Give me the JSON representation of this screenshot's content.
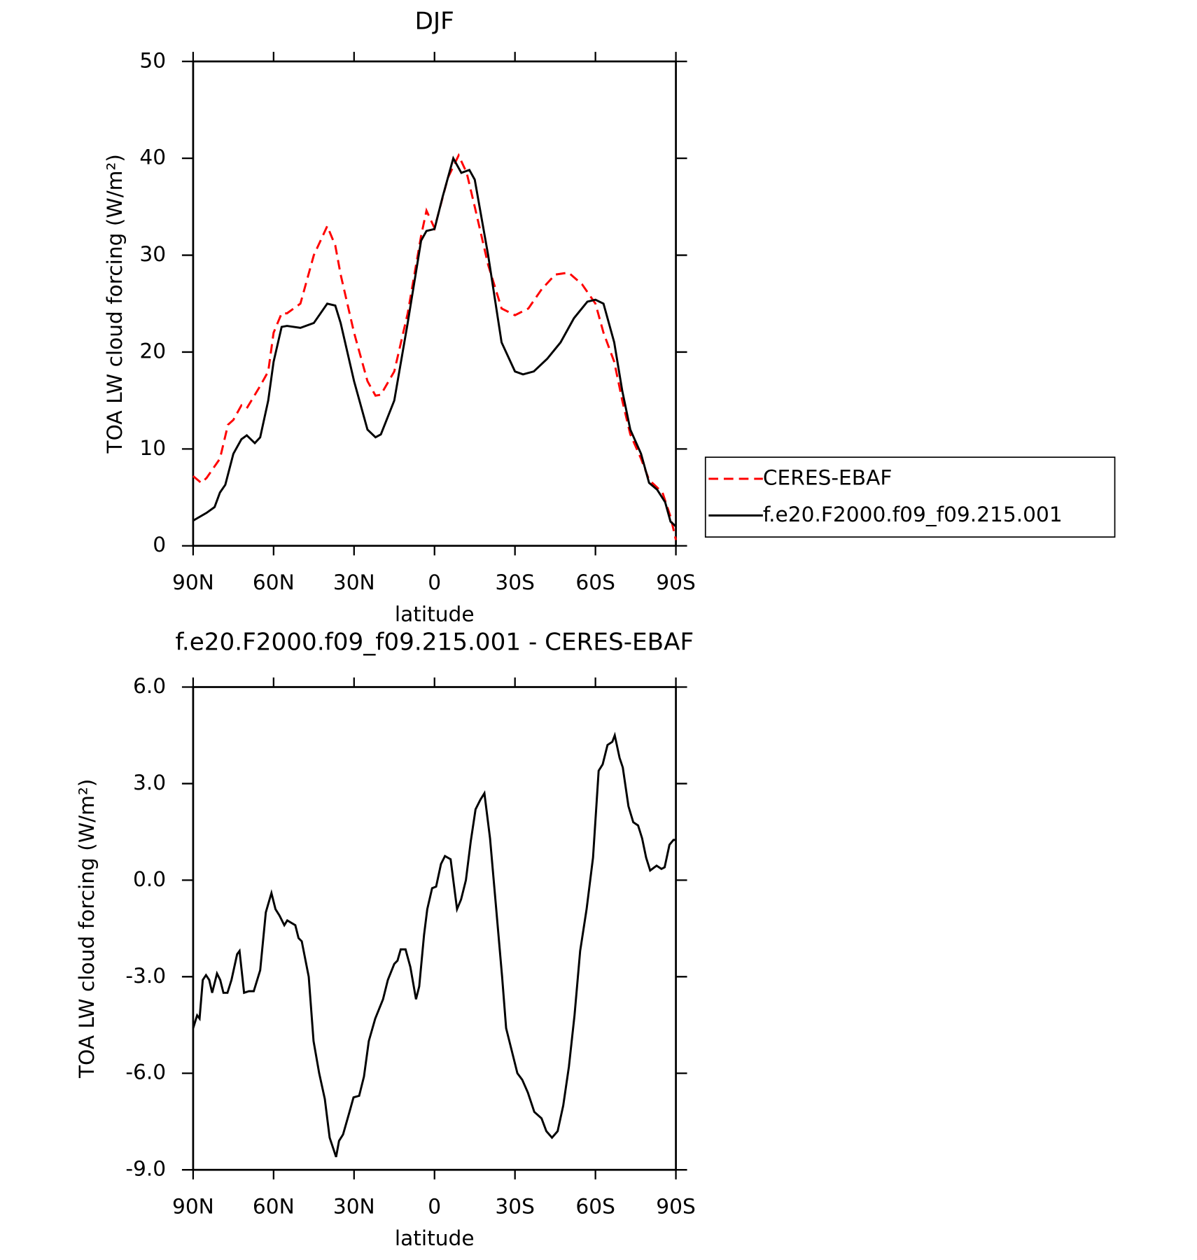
{
  "chart_data": [
    {
      "type": "line",
      "title": "DJF",
      "xlabel": "latitude",
      "ylabel": "TOA LW cloud forcing (W/m²)",
      "xlim": [
        90,
        -90
      ],
      "xticks": [
        {
          "value": 90,
          "label": "90N"
        },
        {
          "value": 60,
          "label": "60N"
        },
        {
          "value": 30,
          "label": "30N"
        },
        0,
        {
          "value": -30,
          "label": "30S"
        },
        {
          "value": -60,
          "label": "60S"
        },
        {
          "value": -90,
          "label": "90S"
        }
      ],
      "ylim": [
        0,
        50
      ],
      "yticks": [
        0,
        10,
        20,
        30,
        40,
        50
      ],
      "legend": "right",
      "series": [
        {
          "name": "CERES-EBAF",
          "color": "#ff0000",
          "dash": "dashed",
          "x": [
            90,
            87,
            85,
            80,
            77,
            75,
            72,
            70,
            65,
            62,
            60,
            57,
            55,
            50,
            45,
            40,
            37,
            35,
            30,
            25,
            22,
            20,
            15,
            10,
            5,
            3,
            0,
            -5,
            -9,
            -12,
            -15,
            -20,
            -25,
            -30,
            -35,
            -40,
            -45,
            -50,
            -55,
            -60,
            -63,
            -67,
            -70,
            -73,
            -77,
            -80,
            -85,
            -88,
            -90
          ],
          "values": [
            7.2,
            6.5,
            7,
            9,
            12.5,
            13,
            14.5,
            14.2,
            16.5,
            18,
            22,
            24,
            24,
            25,
            30,
            33,
            31,
            28,
            22,
            17,
            15.5,
            15.6,
            18,
            24,
            32,
            34.6,
            32.8,
            38,
            40.3,
            38.5,
            35,
            29,
            24.5,
            23.8,
            24.5,
            26.5,
            28,
            28.2,
            27,
            25,
            22,
            19,
            15,
            11.5,
            9,
            6.8,
            5.5,
            3,
            0.6
          ]
        },
        {
          "name": "f.e20.F2000.f09_f09.215.001",
          "color": "#000000",
          "dash": "solid",
          "x": [
            90,
            85,
            82,
            80,
            78,
            75,
            72,
            70,
            67,
            65,
            62,
            60,
            57,
            55,
            50,
            45,
            40,
            37,
            35,
            30,
            25,
            22,
            20,
            15,
            10,
            5,
            3,
            0,
            -3,
            -7,
            -10,
            -13,
            -15,
            -20,
            -25,
            -30,
            -33,
            -37,
            -42,
            -47,
            -52,
            -57,
            -60,
            -63,
            -67,
            -70,
            -73,
            -77,
            -80,
            -83,
            -86,
            -88,
            -90
          ],
          "values": [
            2.6,
            3.4,
            4,
            5.5,
            6.3,
            9.5,
            11,
            11.4,
            10.6,
            11.2,
            15,
            19,
            22.6,
            22.7,
            22.5,
            23,
            25,
            24.8,
            23,
            17,
            12,
            11.2,
            11.5,
            15,
            23,
            31.5,
            32.5,
            32.7,
            36,
            40,
            38.5,
            38.8,
            37.8,
            30,
            21,
            18,
            17.7,
            18,
            19.3,
            21,
            23.5,
            25.2,
            25.4,
            25,
            21,
            16,
            12,
            9.5,
            6.5,
            5.8,
            4.5,
            2.5,
            2
          ]
        }
      ]
    },
    {
      "type": "line",
      "title": "f.e20.F2000.f09_f09.215.001 - CERES-EBAF",
      "xlabel": "latitude",
      "ylabel": "TOA LW cloud forcing (W/m²)",
      "xlim": [
        90,
        -90
      ],
      "xticks": [
        {
          "value": 90,
          "label": "90N"
        },
        {
          "value": 60,
          "label": "60N"
        },
        {
          "value": 30,
          "label": "30N"
        },
        0,
        {
          "value": -30,
          "label": "30S"
        },
        {
          "value": -60,
          "label": "60S"
        },
        {
          "value": -90,
          "label": "90S"
        }
      ],
      "ylim": [
        -9,
        6
      ],
      "yticks": [
        {
          "value": -9,
          "label": "-9.0"
        },
        {
          "value": -6,
          "label": "-6.0"
        },
        {
          "value": -3,
          "label": "-3.0"
        },
        {
          "value": 0,
          "label": "0.0"
        },
        {
          "value": 3,
          "label": "3.0"
        },
        {
          "value": 6,
          "label": "6.0"
        }
      ],
      "color": "#000000",
      "x": [
        90,
        88.5,
        87.6,
        86.4,
        85.2,
        84,
        82.9,
        81.1,
        79.9,
        78.7,
        77.2,
        75.7,
        73.6,
        72.7,
        71,
        69.2,
        67.4,
        65,
        62.9,
        60.8,
        59.3,
        57.8,
        56,
        54.9,
        51.9,
        50.7,
        49.5,
        46.9,
        45.1,
        43,
        40.9,
        39.1,
        36.7,
        35.6,
        34.1,
        31.7,
        30.2,
        28.1,
        26.3,
        24.5,
        22.1,
        19.2,
        17.4,
        15,
        13.8,
        12.6,
        10.8,
        9,
        6.9,
        5.7,
        3.9,
        2.7,
        0.9,
        -0.6,
        -2.4,
        -3.9,
        -6,
        -8.4,
        -9.9,
        -11.7,
        -13.5,
        -15.3,
        -17.1,
        -18.6,
        -20.7,
        -22.8,
        -25.2,
        -26.7,
        -28.8,
        -30.9,
        -32.7,
        -34.8,
        -37.2,
        -39.9,
        -41.7,
        -43.8,
        -45.9,
        -48,
        -50.1,
        -52.2,
        -54.3,
        -56.7,
        -59.1,
        -61.2,
        -62.7,
        -64.5,
        -66.3,
        -67.2,
        -69,
        -70.2,
        -72.3,
        -74.1,
        -75.9,
        -77.4,
        -78.9,
        -80.4,
        -82.8,
        -84.6,
        -85.8,
        -87.6,
        -89.1,
        -90
      ],
      "values": [
        -4.6,
        -4.2,
        -4.3,
        -3.1,
        -2.95,
        -3.1,
        -3.5,
        -2.9,
        -3.1,
        -3.5,
        -3.5,
        -3.1,
        -2.3,
        -2.2,
        -3.5,
        -3.45,
        -3.45,
        -2.8,
        -1.0,
        -0.4,
        -0.9,
        -1.1,
        -1.4,
        -1.25,
        -1.4,
        -1.8,
        -1.9,
        -3.0,
        -5.0,
        -6.0,
        -6.8,
        -8.0,
        -8.6,
        -8.1,
        -7.9,
        -7.2,
        -6.75,
        -6.7,
        -6.1,
        -5.0,
        -4.3,
        -3.7,
        -3.1,
        -2.6,
        -2.5,
        -2.15,
        -2.15,
        -2.7,
        -3.7,
        -3.3,
        -1.7,
        -0.9,
        -0.25,
        -0.2,
        0.5,
        0.75,
        0.65,
        -0.9,
        -0.6,
        0.0,
        1.2,
        2.2,
        2.5,
        2.7,
        1.3,
        -0.7,
        -3.0,
        -4.6,
        -5.3,
        -6.0,
        -6.2,
        -6.6,
        -7.2,
        -7.4,
        -7.8,
        -8.0,
        -7.8,
        -7.0,
        -5.8,
        -4.2,
        -2.2,
        -0.9,
        0.7,
        3.4,
        3.6,
        4.2,
        4.3,
        4.5,
        3.8,
        3.5,
        2.3,
        1.8,
        1.7,
        1.3,
        0.7,
        0.3,
        0.45,
        0.35,
        0.4,
        1.1,
        1.25,
        1.25
      ]
    }
  ]
}
